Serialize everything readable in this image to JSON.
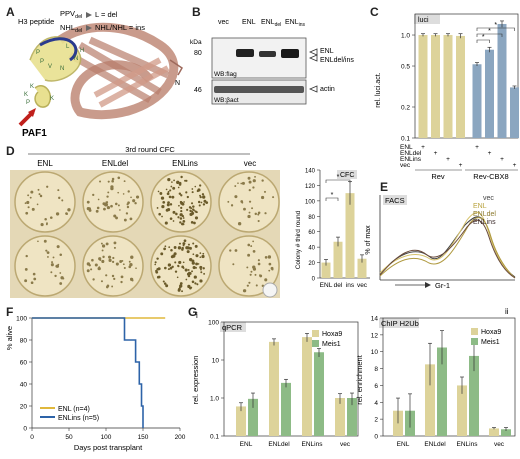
{
  "panels": {
    "A": "A",
    "B": "B",
    "C": "C",
    "D": "D",
    "E": "E",
    "F": "F",
    "G": "G",
    "Gi": "i",
    "Gii": "ii"
  },
  "panelA": {
    "h3": "H3 peptide",
    "ppv": "PPV",
    "ppv_sub": "del",
    "ppv_arrow": "L = del",
    "nhl": "NHL",
    "nhl_sub": "del",
    "nhl_arrow": "NHL/NHL = ins",
    "paf1": "PAF1",
    "N": "N",
    "res": [
      "P",
      "P",
      "V",
      "N",
      "N",
      "H",
      "L",
      "K",
      "K",
      "P",
      "K"
    ]
  },
  "panelB": {
    "lanes": [
      "vec",
      "ENL",
      "ENL",
      "ENL"
    ],
    "lane_subs": [
      "",
      "",
      "del",
      "ins"
    ],
    "kda": "kDa",
    "m80": "80",
    "m46": "46",
    "wb1": "WB:flag",
    "wb2": "WB:βact",
    "r1": "ENL",
    "r2": "ENLdel/ins",
    "r3": "actin"
  },
  "panelC": {
    "title": "luci",
    "ylabel": "rel. luci.act.",
    "groups": [
      "Rev",
      "Rev-CBX8"
    ],
    "rows": [
      "ENL",
      "ENLdel",
      "ENLins",
      "vec"
    ],
    "plus": "+",
    "star": "*"
  },
  "panelD": {
    "title": "3rd round CFC",
    "cols": [
      "ENL",
      "ENLdel",
      "ENLins",
      "vec"
    ],
    "bar_title": "CFC",
    "ylabel": "Colony # third round",
    "star": "*"
  },
  "panelE": {
    "title": "FACS",
    "ylabel": "% of max",
    "xlabel": "Gr-1",
    "legend": [
      "vec",
      "ENL",
      "ENLdel",
      "ENLins"
    ]
  },
  "panelF": {
    "ylabel": "% alive",
    "xlabel": "Days post transplant",
    "legend": [
      "ENL (n=4)",
      "ENLins (n=5)"
    ]
  },
  "panelGi": {
    "title": "qPCR",
    "ylabel": "rel. expression",
    "legend": [
      "Hoxa9",
      "Meis1"
    ]
  },
  "panelGii": {
    "title": "ChIP H2Ub",
    "ylabel": "rel. enrichment",
    "legend": [
      "Hoxa9",
      "Meis1"
    ]
  },
  "colors": {
    "tan": "#ddd39a",
    "blue": "#8ba6c0",
    "green": "#8dbb86",
    "gold": "#e0b83c",
    "navy": "#2d63a8"
  },
  "chart_data": [
    {
      "type": "bar",
      "panel": "C",
      "title": "luci",
      "ylabel": "rel. luci.act.",
      "log_y": true,
      "ylim": [
        0.1,
        1.6
      ],
      "yticks": [
        "0.1",
        "0.2",
        "0.5",
        "1.0"
      ],
      "values": [
        1.0,
        1.0,
        1.0,
        0.98,
        0.52,
        0.72,
        1.28,
        0.31
      ],
      "errors": [
        0.03,
        0.03,
        0.03,
        0.05,
        0.02,
        0.04,
        0.09,
        0.01
      ]
    },
    {
      "type": "bar",
      "panel": "D",
      "title": "CFC",
      "ylabel": "Colony # third round",
      "ylim": [
        0,
        140
      ],
      "yticks": [
        "0",
        "20",
        "40",
        "60",
        "80",
        "100",
        "120",
        "140"
      ],
      "categories": [
        "ENL",
        "del",
        "ins",
        "vec"
      ],
      "values": [
        20,
        47,
        110,
        25
      ],
      "errors": [
        4,
        6,
        15,
        5
      ]
    },
    {
      "type": "line",
      "panel": "E",
      "xlabel": "Gr-1",
      "ylabel": "% of max",
      "legend": [
        "vec",
        "ENL",
        "ENLdel",
        "ENLins"
      ]
    },
    {
      "type": "line",
      "panel": "F",
      "xlabel": "Days post transplant",
      "ylabel": "% alive",
      "xlim": [
        0,
        200
      ],
      "ylim": [
        0,
        100
      ],
      "xticks": [
        "0",
        "50",
        "100",
        "150",
        "200"
      ],
      "yticks": [
        "0",
        "20",
        "40",
        "60",
        "80",
        "100"
      ],
      "series": [
        {
          "name": "ENL (n=4)",
          "x": [
            0,
            180
          ],
          "y": [
            100,
            100
          ]
        },
        {
          "name": "ENLins (n=5)",
          "x": [
            0,
            125,
            125,
            140,
            140,
            145,
            145,
            148,
            148,
            150,
            150
          ],
          "y": [
            100,
            100,
            80,
            80,
            60,
            60,
            40,
            40,
            20,
            20,
            0
          ]
        }
      ]
    },
    {
      "type": "bar",
      "panel": "Gi",
      "title": "qPCR",
      "ylabel": "rel. expression",
      "log_y": true,
      "ylim": [
        0.1,
        100
      ],
      "yticks": [
        "0.1",
        "1.0",
        "10",
        "100"
      ],
      "categories": [
        "ENL",
        "ENLdel",
        "ENLins",
        "vec"
      ],
      "series": [
        {
          "name": "Hoxa9",
          "values": [
            0.6,
            30,
            40,
            1.0
          ],
          "errors": [
            0.15,
            6,
            10,
            0.3
          ]
        },
        {
          "name": "Meis1",
          "values": [
            0.95,
            2.5,
            16,
            1.0
          ],
          "errors": [
            0.4,
            0.6,
            4,
            0.35
          ]
        }
      ]
    },
    {
      "type": "bar",
      "panel": "Gii",
      "title": "ChIP H2Ub",
      "ylabel": "rel. enrichment",
      "ylim": [
        0,
        14
      ],
      "yticks": [
        "0",
        "2",
        "4",
        "6",
        "8",
        "10",
        "12",
        "14"
      ],
      "categories": [
        "ENL",
        "ENLdel",
        "ENLins",
        "vec"
      ],
      "series": [
        {
          "name": "Hoxa9",
          "values": [
            3,
            8.5,
            6,
            0.9
          ],
          "errors": [
            1.5,
            2.5,
            1,
            0.1
          ]
        },
        {
          "name": "Meis1",
          "values": [
            3,
            10.5,
            9.5,
            0.8
          ],
          "errors": [
            2,
            2,
            1.8,
            0.2
          ]
        }
      ]
    }
  ]
}
